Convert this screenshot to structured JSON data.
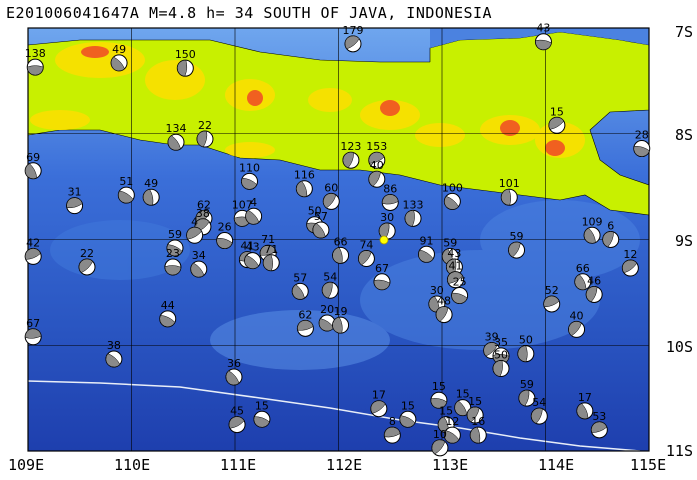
{
  "title": "E201006041647A M=4.8 h= 34 SOUTH OF JAVA, INDONESIA",
  "lat_labels": [
    "7S",
    "8S",
    "9S",
    "10S",
    "11S"
  ],
  "lon_labels": [
    "109E",
    "110E",
    "111E",
    "112E",
    "113E",
    "114E",
    "115E"
  ],
  "colors": {
    "sea_deep": "#1e3fae",
    "sea_mid": "#3b6fd9",
    "sea_shallow": "#6fa6ee",
    "land_low": "#c8f000",
    "land_mid": "#f5e100",
    "land_high": "#f06020",
    "beach_fill": "#8a8a8a",
    "epicenter": "#ffff00",
    "trench": "#e8eef8"
  },
  "events": [
    {
      "label": "138",
      "lon": 109.07,
      "lat": 7.37
    },
    {
      "label": "49",
      "lon": 109.88,
      "lat": 7.33
    },
    {
      "label": "150",
      "lon": 110.52,
      "lat": 7.38
    },
    {
      "label": "179",
      "lon": 112.14,
      "lat": 7.15
    },
    {
      "label": "43",
      "lon": 113.98,
      "lat": 7.13
    },
    {
      "label": "134",
      "lon": 110.43,
      "lat": 8.08
    },
    {
      "label": "22",
      "lon": 110.71,
      "lat": 8.05
    },
    {
      "label": "15",
      "lon": 114.11,
      "lat": 7.92
    },
    {
      "label": "28",
      "lon": 114.93,
      "lat": 8.14
    },
    {
      "label": "69",
      "lon": 109.05,
      "lat": 8.35
    },
    {
      "label": "123",
      "lon": 112.12,
      "lat": 8.25
    },
    {
      "label": "153",
      "lon": 112.37,
      "lat": 8.25
    },
    {
      "label": "110",
      "lon": 111.14,
      "lat": 8.45
    },
    {
      "label": "116",
      "lon": 111.67,
      "lat": 8.52
    },
    {
      "label": "40",
      "lon": 112.37,
      "lat": 8.43
    },
    {
      "label": "31",
      "lon": 109.45,
      "lat": 8.68
    },
    {
      "label": "51",
      "lon": 109.95,
      "lat": 8.58
    },
    {
      "label": "49",
      "lon": 110.19,
      "lat": 8.6
    },
    {
      "label": "60",
      "lon": 111.93,
      "lat": 8.64
    },
    {
      "label": "86",
      "lon": 112.5,
      "lat": 8.65
    },
    {
      "label": "100",
      "lon": 113.1,
      "lat": 8.64
    },
    {
      "label": "101",
      "lon": 113.65,
      "lat": 8.6
    },
    {
      "label": "62",
      "lon": 110.7,
      "lat": 8.8
    },
    {
      "label": "107",
      "lon": 111.07,
      "lat": 8.8
    },
    {
      "label": "4",
      "lon": 111.18,
      "lat": 8.78
    },
    {
      "label": "133",
      "lon": 112.72,
      "lat": 8.8
    },
    {
      "label": "38",
      "lon": 110.69,
      "lat": 8.88
    },
    {
      "label": "50",
      "lon": 111.77,
      "lat": 8.86
    },
    {
      "label": "57",
      "lon": 111.83,
      "lat": 8.91
    },
    {
      "label": "30",
      "lon": 112.47,
      "lat": 8.92
    },
    {
      "label": "4",
      "lon": 110.61,
      "lat": 8.96
    },
    {
      "label": "26",
      "lon": 110.9,
      "lat": 9.01
    },
    {
      "label": "109",
      "lon": 114.45,
      "lat": 8.96
    },
    {
      "label": "6",
      "lon": 114.63,
      "lat": 9.0
    },
    {
      "label": "42",
      "lon": 109.05,
      "lat": 9.16
    },
    {
      "label": "59",
      "lon": 110.42,
      "lat": 9.08
    },
    {
      "label": "59",
      "lon": 113.08,
      "lat": 9.16
    },
    {
      "label": "59",
      "lon": 113.72,
      "lat": 9.1
    },
    {
      "label": "71",
      "lon": 111.32,
      "lat": 9.13
    },
    {
      "label": "91",
      "lon": 112.85,
      "lat": 9.14
    },
    {
      "label": "66",
      "lon": 112.02,
      "lat": 9.15
    },
    {
      "label": "74",
      "lon": 112.27,
      "lat": 9.18
    },
    {
      "label": "41",
      "lon": 111.12,
      "lat": 9.19
    },
    {
      "label": "43",
      "lon": 111.17,
      "lat": 9.2
    },
    {
      "label": "71",
      "lon": 111.35,
      "lat": 9.22
    },
    {
      "label": "22",
      "lon": 109.57,
      "lat": 9.26
    },
    {
      "label": "23",
      "lon": 110.4,
      "lat": 9.26
    },
    {
      "label": "34",
      "lon": 110.65,
      "lat": 9.28
    },
    {
      "label": "43",
      "lon": 113.12,
      "lat": 9.26
    },
    {
      "label": "12",
      "lon": 114.82,
      "lat": 9.27
    },
    {
      "label": "67",
      "lon": 112.42,
      "lat": 9.4
    },
    {
      "label": "57",
      "lon": 111.63,
      "lat": 9.49
    },
    {
      "label": "54",
      "lon": 111.92,
      "lat": 9.48
    },
    {
      "label": "41",
      "lon": 113.13,
      "lat": 9.38
    },
    {
      "label": "25",
      "lon": 113.17,
      "lat": 9.53
    },
    {
      "label": "66",
      "lon": 114.36,
      "lat": 9.4
    },
    {
      "label": "46",
      "lon": 114.47,
      "lat": 9.52
    },
    {
      "label": "52",
      "lon": 114.06,
      "lat": 9.61
    },
    {
      "label": "44",
      "lon": 110.35,
      "lat": 9.75
    },
    {
      "label": "30",
      "lon": 112.95,
      "lat": 9.61
    },
    {
      "label": "48",
      "lon": 113.02,
      "lat": 9.71
    },
    {
      "label": "62",
      "lon": 111.68,
      "lat": 9.84
    },
    {
      "label": "20",
      "lon": 111.89,
      "lat": 9.79
    },
    {
      "label": "19",
      "lon": 112.02,
      "lat": 9.81
    },
    {
      "label": "40",
      "lon": 114.3,
      "lat": 9.85
    },
    {
      "label": "67",
      "lon": 109.05,
      "lat": 9.92
    },
    {
      "label": "38",
      "lon": 109.83,
      "lat": 10.13
    },
    {
      "label": "50",
      "lon": 113.81,
      "lat": 10.08
    },
    {
      "label": "39",
      "lon": 113.48,
      "lat": 10.05
    },
    {
      "label": "35",
      "lon": 113.57,
      "lat": 10.1
    },
    {
      "label": "36",
      "lon": 110.99,
      "lat": 10.3
    },
    {
      "label": "50",
      "lon": 113.57,
      "lat": 10.22
    },
    {
      "label": "17",
      "lon": 112.39,
      "lat": 10.6
    },
    {
      "label": "15",
      "lon": 112.97,
      "lat": 10.52
    },
    {
      "label": "15",
      "lon": 113.2,
      "lat": 10.59
    },
    {
      "label": "59",
      "lon": 113.82,
      "lat": 10.5
    },
    {
      "label": "45",
      "lon": 111.02,
      "lat": 10.75
    },
    {
      "label": "15",
      "lon": 111.26,
      "lat": 10.7
    },
    {
      "label": "17",
      "lon": 114.38,
      "lat": 10.62
    },
    {
      "label": "54",
      "lon": 113.94,
      "lat": 10.67
    },
    {
      "label": "53",
      "lon": 114.52,
      "lat": 10.8
    },
    {
      "label": "15",
      "lon": 112.67,
      "lat": 10.7
    },
    {
      "label": "15",
      "lon": 113.04,
      "lat": 10.75
    },
    {
      "label": "15",
      "lon": 113.32,
      "lat": 10.66
    },
    {
      "label": "8",
      "lon": 112.52,
      "lat": 10.85
    },
    {
      "label": "12",
      "lon": 113.1,
      "lat": 10.85
    },
    {
      "label": "16",
      "lon": 113.35,
      "lat": 10.85
    },
    {
      "label": "10",
      "lon": 112.98,
      "lat": 10.97
    }
  ]
}
